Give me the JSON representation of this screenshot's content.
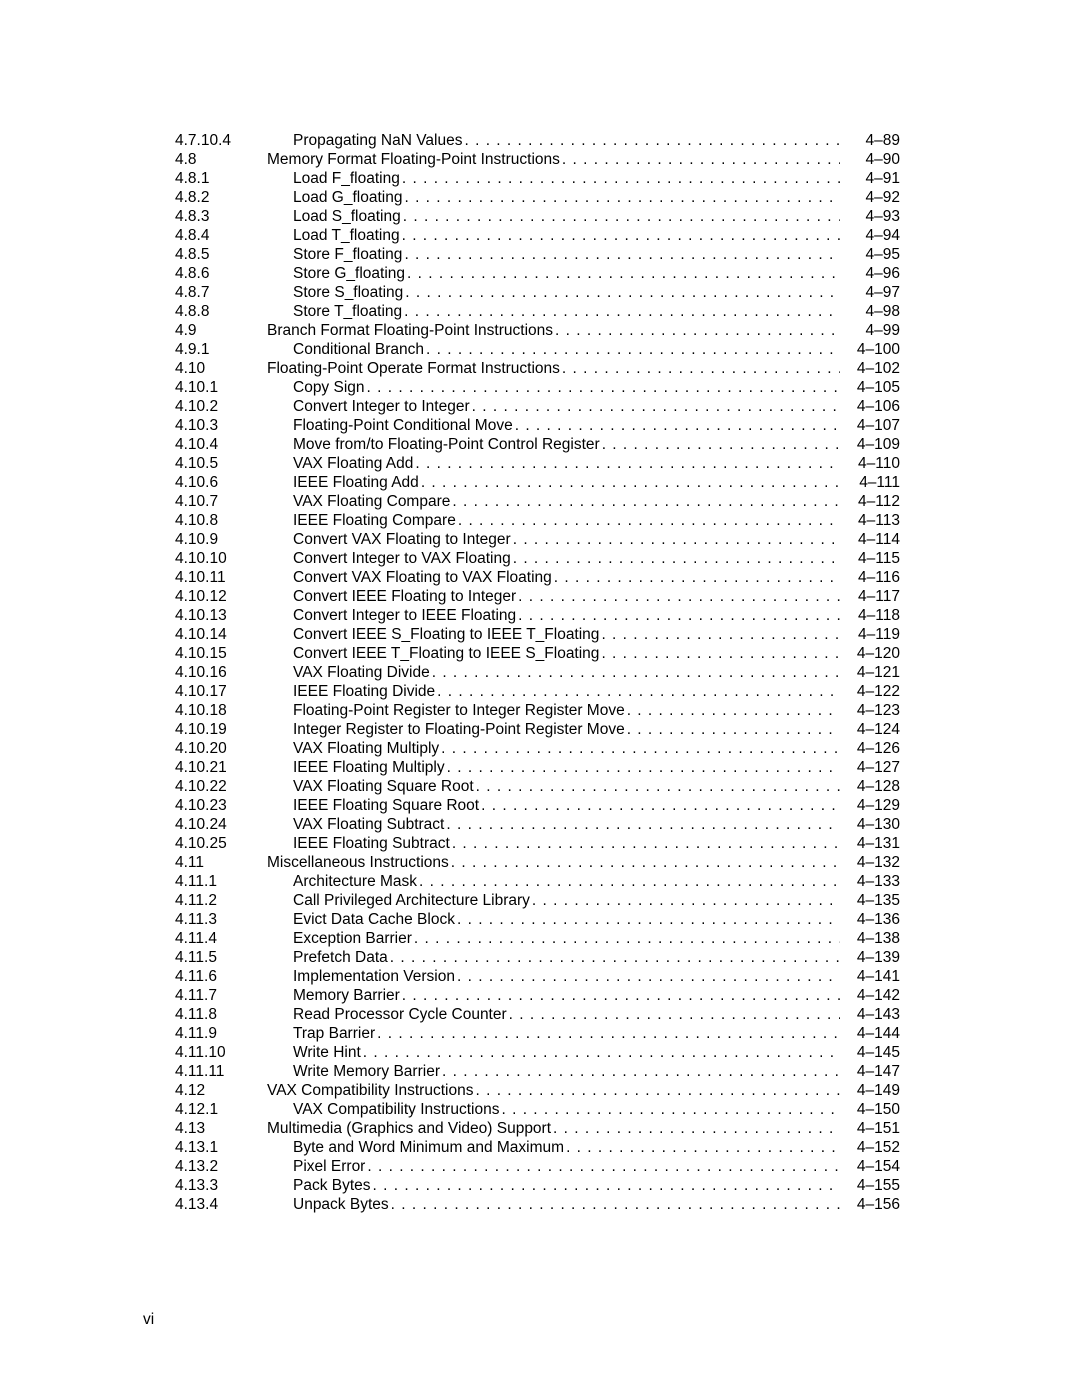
{
  "page_number": "vi",
  "entries": [
    {
      "section": "4.7.10.4",
      "title": "Propagating NaN Values",
      "page": "4–89",
      "indent": 1
    },
    {
      "section": "4.8",
      "title": "Memory Format Floating-Point Instructions",
      "page": "4–90",
      "indent": 0
    },
    {
      "section": "4.8.1",
      "title": "Load F_floating",
      "page": "4–91",
      "indent": 1
    },
    {
      "section": "4.8.2",
      "title": "Load G_floating",
      "page": "4–92",
      "indent": 1
    },
    {
      "section": "4.8.3",
      "title": "Load S_floating",
      "page": "4–93",
      "indent": 1
    },
    {
      "section": "4.8.4",
      "title": "Load T_floating ",
      "page": "4–94",
      "indent": 1
    },
    {
      "section": "4.8.5",
      "title": "Store F_floating",
      "page": "4–95",
      "indent": 1
    },
    {
      "section": "4.8.6",
      "title": "Store G_floating",
      "page": "4–96",
      "indent": 1
    },
    {
      "section": "4.8.7",
      "title": "Store S_floating",
      "page": "4–97",
      "indent": 1
    },
    {
      "section": "4.8.8",
      "title": "Store T_floating",
      "page": "4–98",
      "indent": 1
    },
    {
      "section": "4.9",
      "title": "Branch Format Floating-Point Instructions",
      "page": "4–99",
      "indent": 0
    },
    {
      "section": "4.9.1",
      "title": "Conditional Branch",
      "page": "4–100",
      "indent": 1
    },
    {
      "section": "4.10",
      "title": "Floating-Point Operate Format Instructions",
      "page": "4–102",
      "indent": 0
    },
    {
      "section": "4.10.1",
      "title": "Copy Sign",
      "page": "4–105",
      "indent": 1
    },
    {
      "section": "4.10.2",
      "title": "Convert Integer to Integer",
      "page": "4–106",
      "indent": 1
    },
    {
      "section": "4.10.3",
      "title": "Floating-Point Conditional Move",
      "page": "4–107",
      "indent": 1
    },
    {
      "section": "4.10.4",
      "title": "Move from/to Floating-Point Control Register",
      "page": "4–109",
      "indent": 1
    },
    {
      "section": "4.10.5",
      "title": "VAX Floating Add",
      "page": "4–110",
      "indent": 1
    },
    {
      "section": "4.10.6",
      "title": "IEEE Floating Add",
      "page": "4–111",
      "indent": 1
    },
    {
      "section": "4.10.7",
      "title": "VAX Floating Compare",
      "page": "4–112",
      "indent": 1
    },
    {
      "section": "4.10.8",
      "title": "IEEE Floating Compare ",
      "page": "4–113",
      "indent": 1
    },
    {
      "section": "4.10.9",
      "title": "Convert VAX Floating to Integer",
      "page": "4–114",
      "indent": 1
    },
    {
      "section": "4.10.10",
      "title": "Convert Integer to VAX Floating",
      "page": "4–115",
      "indent": 1
    },
    {
      "section": "4.10.11",
      "title": "Convert VAX Floating to VAX Floating",
      "page": "4–116",
      "indent": 1
    },
    {
      "section": "4.10.12",
      "title": "Convert IEEE Floating to Integer ",
      "page": "4–117",
      "indent": 1
    },
    {
      "section": "4.10.13",
      "title": "Convert Integer to IEEE Floating ",
      "page": "4–118",
      "indent": 1
    },
    {
      "section": "4.10.14",
      "title": "Convert IEEE S_Floating to IEEE T_Floating",
      "page": "4–119",
      "indent": 1
    },
    {
      "section": "4.10.15",
      "title": "Convert IEEE T_Floating to IEEE S_Floating",
      "page": "4–120",
      "indent": 1
    },
    {
      "section": "4.10.16",
      "title": "VAX Floating Divide ",
      "page": "4–121",
      "indent": 1
    },
    {
      "section": "4.10.17",
      "title": "IEEE Floating Divide",
      "page": "4–122",
      "indent": 1
    },
    {
      "section": "4.10.18",
      "title": "Floating-Point Register to Integer Register Move",
      "page": "4–123",
      "indent": 1
    },
    {
      "section": "4.10.19",
      "title": "Integer Register to Floating-Point Register Move",
      "page": "4–124",
      "indent": 1
    },
    {
      "section": "4.10.20",
      "title": "VAX Floating Multiply",
      "page": "4–126",
      "indent": 1
    },
    {
      "section": "4.10.21",
      "title": "IEEE Floating Multiply",
      "page": "4–127",
      "indent": 1
    },
    {
      "section": "4.10.22",
      "title": "VAX Floating Square Root ",
      "page": "4–128",
      "indent": 1
    },
    {
      "section": "4.10.23",
      "title": "IEEE Floating Square Root",
      "page": "4–129",
      "indent": 1
    },
    {
      "section": "4.10.24",
      "title": "VAX Floating Subtract",
      "page": "4–130",
      "indent": 1
    },
    {
      "section": "4.10.25",
      "title": "IEEE Floating Subtract",
      "page": "4–131",
      "indent": 1
    },
    {
      "section": "4.11",
      "title": "Miscellaneous Instructions",
      "page": "4–132",
      "indent": 0
    },
    {
      "section": "4.11.1",
      "title": "Architecture Mask",
      "page": "4–133",
      "indent": 1
    },
    {
      "section": "4.11.2",
      "title": "Call Privileged Architecture Library",
      "page": "4–135",
      "indent": 1
    },
    {
      "section": "4.11.3",
      "title": "Evict Data Cache Block",
      "page": "4–136",
      "indent": 1
    },
    {
      "section": "4.11.4",
      "title": "Exception Barrier ",
      "page": "4–138",
      "indent": 1
    },
    {
      "section": "4.11.5",
      "title": "Prefetch Data",
      "page": "4–139",
      "indent": 1
    },
    {
      "section": "4.11.6",
      "title": "Implementation Version ",
      "page": "4–141",
      "indent": 1
    },
    {
      "section": "4.11.7",
      "title": "Memory Barrier",
      "page": "4–142",
      "indent": 1
    },
    {
      "section": "4.11.8",
      "title": "Read Processor Cycle Counter",
      "page": "4–143",
      "indent": 1
    },
    {
      "section": "4.11.9",
      "title": "Trap Barrier",
      "page": "4–144",
      "indent": 1
    },
    {
      "section": "4.11.10",
      "title": "Write Hint ",
      "page": "4–145",
      "indent": 1
    },
    {
      "section": "4.11.11",
      "title": "Write Memory Barrier",
      "page": "4–147",
      "indent": 1
    },
    {
      "section": "4.12",
      "title": "VAX Compatibility Instructions",
      "page": "4–149",
      "indent": 0
    },
    {
      "section": "4.12.1",
      "title": "VAX Compatibility Instructions",
      "page": "4–150",
      "indent": 1
    },
    {
      "section": "4.13",
      "title": "Multimedia (Graphics and Video) Support",
      "page": "4–151",
      "indent": 0
    },
    {
      "section": "4.13.1",
      "title": "Byte and Word Minimum and Maximum",
      "page": "4–152",
      "indent": 1
    },
    {
      "section": "4.13.2",
      "title": "Pixel Error  ",
      "page": "4–154",
      "indent": 1
    },
    {
      "section": "4.13.3",
      "title": "Pack Bytes",
      "page": "4–155",
      "indent": 1
    },
    {
      "section": "4.13.4",
      "title": "Unpack Bytes",
      "page": "4–156",
      "indent": 1
    }
  ]
}
